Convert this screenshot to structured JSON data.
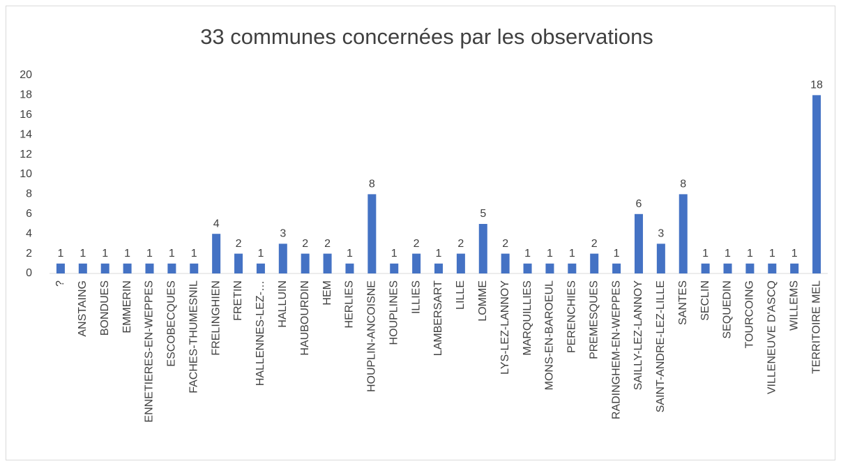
{
  "chart_data": {
    "type": "bar",
    "title": "33 communes concernées par les observations",
    "categories": [
      "?",
      "ANSTAING",
      "BONDUES",
      "EMMERIN",
      "ENNETIERES-EN-WEPPES",
      "ESCOBECQUES",
      "FACHES-THUMESNIL",
      "FRELINGHIEN",
      "FRETIN",
      "HALLENNES-LEZ-…",
      "HALLUIN",
      "HAUBOURDIN",
      "HEM",
      "HERLIES",
      "HOUPLIN-ANCOISNE",
      "HOUPLINES",
      "ILLIES",
      "LAMBERSART",
      "LILLE",
      "LOMME",
      "LYS-LEZ-LANNOY",
      "MARQUILLIES",
      "MONS-EN-BAROEUL",
      "PERENCHIES",
      "PREMESQUES",
      "RADINGHEM-EN-WEPPES",
      "SAILLY-LEZ-LANNOY",
      "SAINT-ANDRE-LEZ-LILLE",
      "SANTES",
      "SECLIN",
      "SEQUEDIN",
      "TOURCOING",
      "VILLENEUVE D'ASCQ",
      "WILLEMS",
      "TERRITOIRE MEL"
    ],
    "values": [
      1,
      1,
      1,
      1,
      1,
      1,
      1,
      4,
      2,
      1,
      3,
      2,
      2,
      1,
      8,
      1,
      2,
      1,
      2,
      5,
      2,
      1,
      1,
      1,
      2,
      1,
      6,
      3,
      8,
      1,
      1,
      1,
      1,
      1,
      18
    ],
    "color": "#4472c4",
    "ylim": [
      0,
      20
    ],
    "yticks": [
      0,
      2,
      4,
      6,
      8,
      10,
      12,
      14,
      16,
      18,
      20
    ],
    "grid": false
  }
}
